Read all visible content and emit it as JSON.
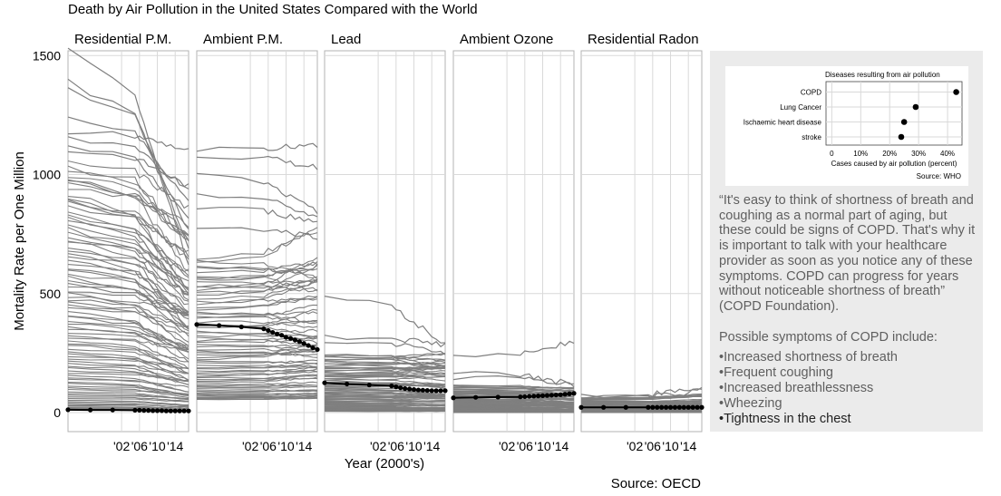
{
  "chart_data": [
    {
      "type": "line",
      "title": "Death by Air Pollution in the United States Compared with the World",
      "xlabel": "Year (2000's)",
      "ylabel": "Mortality Rate per One Million",
      "source": "Source: OECD",
      "x_range": [
        1990,
        2017
      ],
      "ylim": [
        -80,
        1520
      ],
      "y_ticks": [
        0,
        500,
        1000,
        1500
      ],
      "y_tick_labels": [
        "0",
        "500",
        "1000",
        "1500"
      ],
      "x_ticks": [
        2002,
        2006,
        2010,
        2014
      ],
      "x_tick_labels": [
        "'02",
        "'06",
        "'10",
        "'14"
      ],
      "highlight_years": [
        1990,
        1995,
        2000,
        2005,
        2006,
        2007,
        2008,
        2009,
        2010,
        2011,
        2012,
        2013,
        2014,
        2015,
        2016,
        2017
      ],
      "grid": true,
      "colors": {
        "world_lines": "#7f7f7f",
        "us_line": "#000000",
        "panel_border": "#b3b3b3",
        "grid": "#d9d9d9"
      },
      "panels": [
        {
          "name": "Residential P.M.",
          "us_values": [
            12,
            11,
            11,
            10,
            10,
            9,
            9,
            8,
            8,
            8,
            7,
            7,
            7,
            7,
            7,
            7
          ],
          "world_top_lines": [
            {
              "start": 1520,
              "end": 620
            },
            {
              "start": 1390,
              "end": 700
            },
            {
              "start": 1360,
              "end": 760
            },
            {
              "start": 1250,
              "end": 880
            },
            {
              "start": 1180,
              "end": 1100
            },
            {
              "start": 1150,
              "end": 940
            },
            {
              "start": 1130,
              "end": 820
            },
            {
              "start": 1100,
              "end": 950
            }
          ],
          "world_band": {
            "upper_start": 1050,
            "upper_end": 720,
            "lower_start": 10,
            "lower_end": 5,
            "count": 90
          }
        },
        {
          "name": "Ambient P.M.",
          "us_values": [
            370,
            366,
            360,
            352,
            345,
            337,
            330,
            325,
            316,
            312,
            305,
            298,
            290,
            282,
            272,
            265
          ],
          "world_top_lines": [
            {
              "start": 1080,
              "end": 1030
            },
            {
              "start": 1110,
              "end": 1120
            },
            {
              "start": 1000,
              "end": 840
            },
            {
              "start": 920,
              "end": 820
            },
            {
              "start": 860,
              "end": 800
            },
            {
              "start": 780,
              "end": 740
            }
          ],
          "world_band": {
            "upper_start": 650,
            "upper_end": 680,
            "lower_start": 55,
            "lower_end": 60,
            "count": 70
          }
        },
        {
          "name": "Lead",
          "us_values": [
            125,
            120,
            116,
            112,
            108,
            104,
            101,
            99,
            97,
            95,
            94,
            93,
            92,
            92,
            92,
            92
          ],
          "world_top_lines": [
            {
              "start": 490,
              "end": 285
            },
            {
              "start": 320,
              "end": 285
            },
            {
              "start": 295,
              "end": 255
            }
          ],
          "world_band": {
            "upper_start": 245,
            "upper_end": 235,
            "lower_start": 5,
            "lower_end": 5,
            "count": 70
          }
        },
        {
          "name": "Ambient Ozone",
          "us_values": [
            62,
            64,
            65,
            66,
            67,
            68,
            69,
            70,
            71,
            72,
            73,
            74,
            75,
            77,
            79,
            81
          ],
          "world_top_lines": [
            {
              "start": 235,
              "end": 300
            },
            {
              "start": 170,
              "end": 115
            },
            {
              "start": 145,
              "end": 125
            }
          ],
          "world_band": {
            "upper_start": 115,
            "upper_end": 105,
            "lower_start": 0,
            "lower_end": 0,
            "count": 60
          }
        },
        {
          "name": "Residential Radon",
          "us_values": [
            22,
            22,
            22,
            22,
            22,
            22,
            22,
            22,
            22,
            22,
            22,
            22,
            22,
            22,
            22,
            22
          ],
          "world_top_lines": [
            {
              "start": 70,
              "end": 100
            },
            {
              "start": 65,
              "end": 90
            }
          ],
          "world_band": {
            "upper_start": 62,
            "upper_end": 70,
            "lower_start": 0,
            "lower_end": 0,
            "count": 40
          }
        }
      ]
    },
    {
      "type": "scatter",
      "title": "Diseases resulting from air pollution",
      "xlabel": "Cases caused by air pollution (percent)",
      "source": "Source: WHO",
      "categories": [
        "COPD",
        "Lung Cancer",
        "Ischaemic heart disease",
        "stroke"
      ],
      "values": [
        43,
        29,
        25,
        24
      ],
      "xlim": [
        -2,
        45
      ],
      "x_ticks": [
        0,
        10,
        20,
        30,
        40
      ],
      "x_tick_labels": [
        "0",
        "10%",
        "20%",
        "30%",
        "40%"
      ]
    }
  ],
  "sidebar": {
    "quote": "“It's easy to think of shortness of breath and coughing as a normal part of aging, but these could be signs of COPD. That's why it is important to talk with your healthcare provider as soon as you notice any of these symptoms. COPD can progress for years without noticeable shortness of breath” (COPD Foundation).",
    "symptoms_title": "Possible symptoms of COPD include:",
    "symptoms": [
      "•Increased shortness of breath",
      "•Frequent coughing",
      "•Increased breathlessness",
      "•Wheezing",
      "•Tightness in the chest"
    ]
  }
}
